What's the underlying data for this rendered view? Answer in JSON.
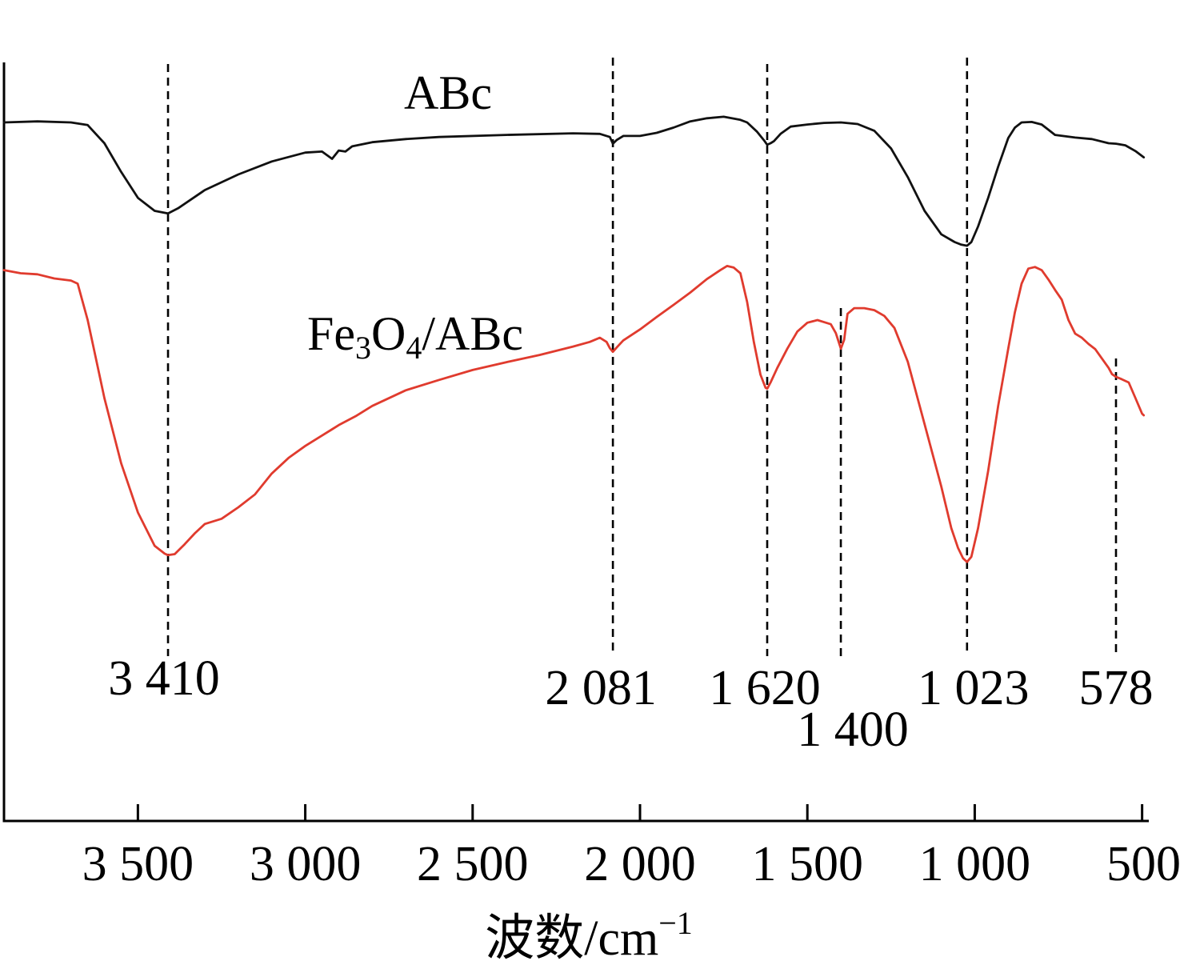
{
  "chart_data": {
    "type": "line",
    "xlabel": "波数/cm",
    "xlabel_sup": "−1",
    "xlim": [
      3900,
      480
    ],
    "x_ticks": [
      {
        "value": 3500,
        "label": "3 500"
      },
      {
        "value": 3000,
        "label": "3 000"
      },
      {
        "value": 2500,
        "label": "2 500"
      },
      {
        "value": 2000,
        "label": "2 000"
      },
      {
        "value": 1500,
        "label": "1 500"
      },
      {
        "value": 1000,
        "label": "1 000"
      },
      {
        "value": 500,
        "label": "500"
      }
    ],
    "y_ticks_shown": false,
    "grid": false,
    "series": [
      {
        "name": "ABc",
        "color": "#111111",
        "x": [
          3900,
          3800,
          3700,
          3650,
          3600,
          3550,
          3500,
          3450,
          3410,
          3380,
          3300,
          3200,
          3100,
          3000,
          2950,
          2920,
          2900,
          2880,
          2860,
          2800,
          2700,
          2600,
          2400,
          2200,
          2120,
          2090,
          2081,
          2070,
          2050,
          2000,
          1950,
          1900,
          1850,
          1800,
          1750,
          1700,
          1680,
          1650,
          1630,
          1620,
          1610,
          1600,
          1580,
          1550,
          1500,
          1450,
          1400,
          1350,
          1300,
          1250,
          1200,
          1150,
          1100,
          1060,
          1040,
          1023,
          1010,
          990,
          960,
          930,
          900,
          880,
          860,
          830,
          800,
          780,
          760,
          700,
          650,
          600,
          578,
          550,
          520,
          495
        ],
        "y": [
          86.0,
          86.2,
          86.0,
          85.5,
          82.0,
          76.5,
          71.5,
          69.0,
          68.5,
          69.5,
          73.0,
          76.0,
          78.5,
          80.2,
          80.4,
          79.0,
          80.6,
          80.4,
          81.4,
          82.2,
          82.8,
          83.2,
          83.6,
          83.9,
          83.8,
          83.2,
          81.9,
          82.6,
          83.4,
          83.4,
          84.0,
          85.0,
          86.2,
          86.8,
          87.1,
          86.5,
          86.0,
          84.2,
          82.6,
          81.7,
          82.0,
          82.4,
          83.8,
          85.2,
          85.6,
          85.9,
          86.0,
          85.7,
          84.4,
          81.0,
          75.5,
          69.0,
          64.5,
          63.0,
          62.5,
          62.3,
          63.0,
          66.0,
          71.5,
          77.5,
          83.0,
          85.0,
          86.0,
          86.1,
          85.6,
          84.6,
          83.6,
          83.1,
          82.8,
          82.0,
          81.9,
          81.6,
          80.5,
          79.3
        ]
      },
      {
        "name": "Fe3O4/ABc",
        "color": "#e03b2e",
        "x": [
          3900,
          3850,
          3800,
          3750,
          3700,
          3680,
          3650,
          3600,
          3550,
          3500,
          3450,
          3420,
          3410,
          3390,
          3360,
          3330,
          3300,
          3250,
          3200,
          3150,
          3100,
          3050,
          3000,
          2950,
          2920,
          2900,
          2850,
          2800,
          2700,
          2600,
          2500,
          2400,
          2300,
          2200,
          2150,
          2120,
          2100,
          2090,
          2081,
          2070,
          2050,
          2000,
          1950,
          1900,
          1850,
          1800,
          1760,
          1740,
          1720,
          1700,
          1680,
          1660,
          1640,
          1625,
          1620,
          1610,
          1590,
          1560,
          1530,
          1500,
          1470,
          1450,
          1430,
          1415,
          1400,
          1390,
          1380,
          1360,
          1330,
          1300,
          1270,
          1240,
          1200,
          1150,
          1100,
          1070,
          1050,
          1035,
          1023,
          1010,
          990,
          960,
          930,
          900,
          880,
          860,
          840,
          820,
          800,
          780,
          760,
          740,
          720,
          700,
          680,
          660,
          640,
          620,
          600,
          590,
          578,
          560,
          540,
          520,
          500,
          495
        ],
        "y": [
          57.6,
          57.0,
          56.8,
          56.0,
          55.6,
          55.0,
          48.0,
          33.0,
          20.5,
          11.0,
          4.6,
          3.1,
          2.8,
          3.0,
          4.9,
          7.0,
          8.8,
          9.8,
          12.0,
          14.5,
          18.5,
          21.5,
          23.8,
          25.8,
          27.0,
          27.8,
          29.5,
          31.5,
          34.5,
          36.5,
          38.4,
          39.9,
          41.3,
          42.9,
          43.8,
          44.6,
          43.8,
          42.6,
          41.9,
          42.7,
          44.1,
          46.2,
          48.6,
          50.9,
          53.3,
          55.9,
          57.6,
          58.4,
          58.1,
          57.0,
          51.5,
          43.8,
          37.5,
          35.0,
          34.8,
          36.0,
          38.8,
          42.5,
          45.8,
          47.5,
          48.0,
          47.6,
          47.2,
          45.5,
          42.5,
          44.2,
          49.2,
          50.3,
          50.3,
          49.9,
          48.8,
          46.5,
          40.0,
          28.0,
          16.0,
          8.0,
          4.2,
          2.2,
          1.5,
          2.5,
          8.0,
          19.0,
          31.5,
          42.5,
          49.5,
          55.0,
          57.9,
          58.2,
          57.6,
          55.8,
          53.8,
          51.9,
          48.0,
          45.4,
          44.6,
          43.4,
          42.4,
          40.6,
          38.8,
          37.6,
          37.1,
          36.6,
          36.0,
          33.0,
          30.0,
          29.7
        ]
      }
    ],
    "series_labels": {
      "abc": {
        "text": "ABc"
      },
      "fe3o4_abc": {
        "pre": "Fe",
        "sub1": "3",
        "mid": "O",
        "sub2": "4",
        "post": "/ABc"
      }
    },
    "annotations": [
      {
        "x": 3410,
        "label": "3 410"
      },
      {
        "x": 2081,
        "label": "2 081"
      },
      {
        "x": 1620,
        "label": "1 620"
      },
      {
        "x": 1400,
        "label": "1 400"
      },
      {
        "x": 1023,
        "label": "1 023"
      },
      {
        "x": 578,
        "label": "578"
      }
    ]
  }
}
